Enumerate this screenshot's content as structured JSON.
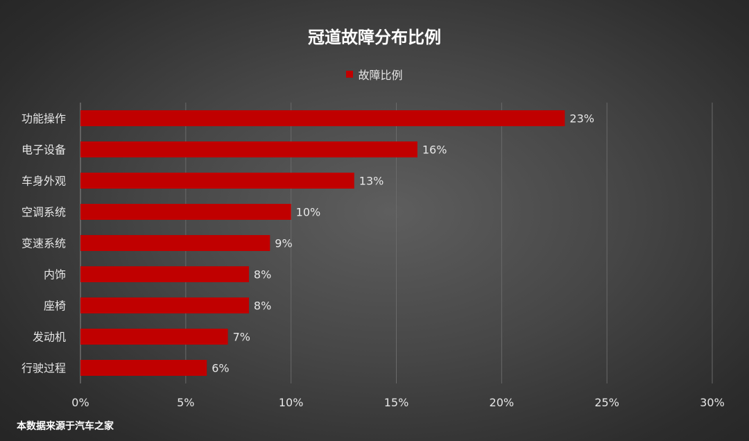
{
  "chart_data": {
    "type": "bar",
    "orientation": "horizontal",
    "title": "冠道故障分布比例",
    "categories": [
      "功能操作",
      "电子设备",
      "车身外观",
      "空调系统",
      "变速系统",
      "内饰",
      "座椅",
      "发动机",
      "行驶过程"
    ],
    "series": [
      {
        "name": "故障比例",
        "values": [
          23,
          16,
          13,
          10,
          9,
          8,
          8,
          7,
          6
        ],
        "labels": [
          "23%",
          "16%",
          "13%",
          "10%",
          "9%",
          "8%",
          "8%",
          "7%",
          "6%"
        ],
        "color": "#c00000"
      }
    ],
    "xlim": [
      0,
      30
    ],
    "xticks": [
      0,
      5,
      10,
      15,
      20,
      25,
      30
    ],
    "xtick_labels": [
      "0%",
      "5%",
      "10%",
      "15%",
      "20%",
      "25%",
      "30%"
    ],
    "grid": true,
    "legend_position": "top-center",
    "data_labels": true
  },
  "source_note": "本数据来源于汽车之家",
  "colors": {
    "bar": "#c00000",
    "text": "#e6e6e6",
    "gridline": "#6a6a6a"
  }
}
